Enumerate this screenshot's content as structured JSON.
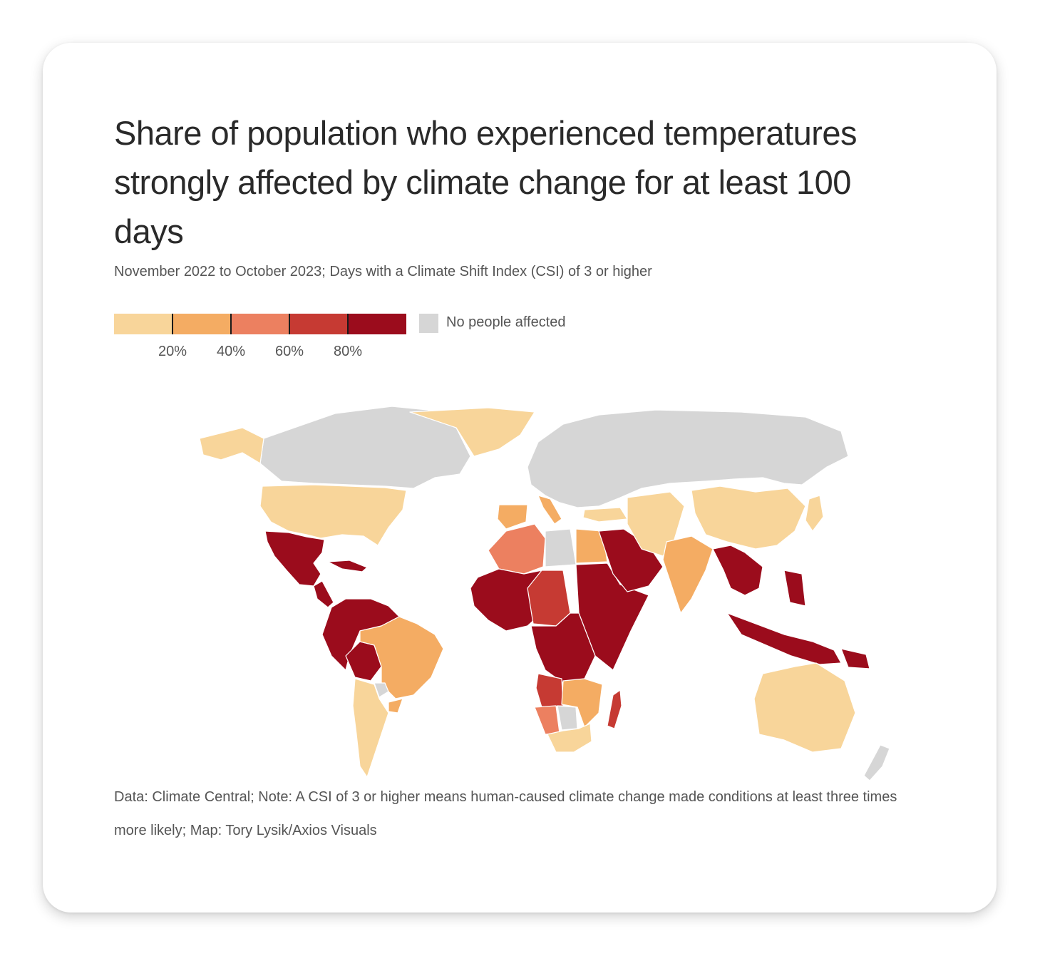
{
  "chart": {
    "title": "Share of population who experienced temperatures strongly affected by climate change for at least 100 days",
    "subtitle": "November 2022 to October 2023; Days with a Climate Shift Index (CSI) of 3 or higher",
    "footer": "Data: Climate Central; Note: A CSI of 3 or higher means human-caused climate change made conditions at least three times more likely; Map: Tory Lysik/Axios Visuals"
  },
  "legend": {
    "scale_colors": [
      "#f8d59a",
      "#f4ac63",
      "#ec8060",
      "#c63a33",
      "#9b0c1c"
    ],
    "tick_labels": [
      "20%",
      "40%",
      "60%",
      "80%"
    ],
    "no_data_label": "No people affected",
    "no_data_color": "#d6d6d6"
  },
  "chart_data": {
    "type": "choropleth",
    "metric": "Share of population with 100+ days of CSI >= 3",
    "bins": [
      "0-20%",
      "20-40%",
      "40-60%",
      "60-80%",
      "80-100%"
    ],
    "regions": [
      {
        "name": "Canada",
        "bin": "none"
      },
      {
        "name": "Alaska",
        "bin": "0-20%"
      },
      {
        "name": "Greenland",
        "bin": "0-20%"
      },
      {
        "name": "United States",
        "bin": "0-20%"
      },
      {
        "name": "Mexico",
        "bin": "80-100%"
      },
      {
        "name": "Central America",
        "bin": "80-100%"
      },
      {
        "name": "Caribbean",
        "bin": "80-100%"
      },
      {
        "name": "Northern South America",
        "bin": "80-100%"
      },
      {
        "name": "Bolivia",
        "bin": "80-100%"
      },
      {
        "name": "Brazil",
        "bin": "20-40%"
      },
      {
        "name": "Paraguay",
        "bin": "none"
      },
      {
        "name": "Uruguay",
        "bin": "20-40%"
      },
      {
        "name": "Argentina and Chile",
        "bin": "0-20%"
      },
      {
        "name": "Russia and Northern Europe",
        "bin": "none"
      },
      {
        "name": "Iberia",
        "bin": "20-40%"
      },
      {
        "name": "Italy",
        "bin": "20-40%"
      },
      {
        "name": "Turkey",
        "bin": "0-20%"
      },
      {
        "name": "North Africa (Morocco, Algeria)",
        "bin": "40-60%"
      },
      {
        "name": "Libya",
        "bin": "none"
      },
      {
        "name": "Egypt",
        "bin": "20-40%"
      },
      {
        "name": "Arabian Peninsula",
        "bin": "80-100%"
      },
      {
        "name": "Iran and Central Asia",
        "bin": "0-20%"
      },
      {
        "name": "India",
        "bin": "20-40%"
      },
      {
        "name": "China",
        "bin": "0-20%"
      },
      {
        "name": "Japan",
        "bin": "0-20%"
      },
      {
        "name": "Southeast Asia",
        "bin": "80-100%"
      },
      {
        "name": "Indonesia and Philippines",
        "bin": "80-100%"
      },
      {
        "name": "Papua New Guinea",
        "bin": "80-100%"
      },
      {
        "name": "Sahel and West Africa",
        "bin": "80-100%"
      },
      {
        "name": "Nigeria region",
        "bin": "60-80%"
      },
      {
        "name": "Sudan and Horn of Africa",
        "bin": "80-100%"
      },
      {
        "name": "Central Africa",
        "bin": "80-100%"
      },
      {
        "name": "Angola",
        "bin": "60-80%"
      },
      {
        "name": "Namibia",
        "bin": "40-60%"
      },
      {
        "name": "Botswana",
        "bin": "none"
      },
      {
        "name": "Southern Africa",
        "bin": "0-20%"
      },
      {
        "name": "Zambia and Mozambique",
        "bin": "20-40%"
      },
      {
        "name": "Madagascar",
        "bin": "60-80%"
      },
      {
        "name": "Australia",
        "bin": "0-20%"
      },
      {
        "name": "New Zealand",
        "bin": "none"
      }
    ]
  }
}
